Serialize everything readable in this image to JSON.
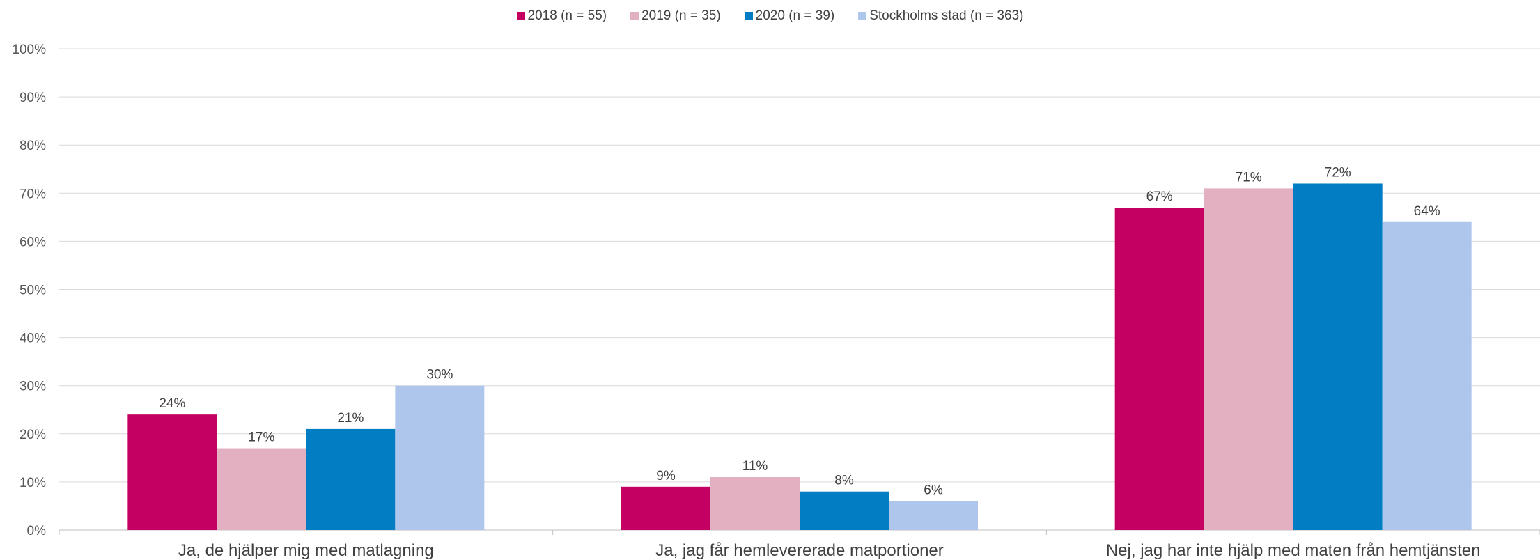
{
  "chart_data": {
    "type": "bar",
    "categories": [
      "Ja, de hjälper mig med matlagning",
      "Ja, jag får hemlevererade matportioner",
      "Nej, jag har inte hjälp med maten från hemtjänsten"
    ],
    "series": [
      {
        "name": "2018 (n = 55)",
        "color": "#C40063",
        "values": [
          24,
          9,
          67
        ],
        "labels": [
          "24%",
          "9%",
          "67%"
        ]
      },
      {
        "name": "2019 (n = 35)",
        "color": "#E3B0C2",
        "values": [
          17,
          11,
          71
        ],
        "labels": [
          "17%",
          "11%",
          "71%"
        ]
      },
      {
        "name": "2020 (n = 39)",
        "color": "#007DC3",
        "values": [
          21,
          8,
          72
        ],
        "labels": [
          "21%",
          "8%",
          "72%"
        ]
      },
      {
        "name": "Stockholms stad (n = 363)",
        "color": "#AEC6EB",
        "values": [
          30,
          6,
          64
        ],
        "labels": [
          "30%",
          "6%",
          "64%"
        ]
      }
    ],
    "yticks": [
      "0%",
      "10%",
      "20%",
      "30%",
      "40%",
      "50%",
      "60%",
      "70%",
      "80%",
      "90%",
      "100%"
    ],
    "ylim": [
      0,
      100
    ],
    "grid": true,
    "legend_position": "top-center",
    "title": "",
    "xlabel": "",
    "ylabel": ""
  }
}
